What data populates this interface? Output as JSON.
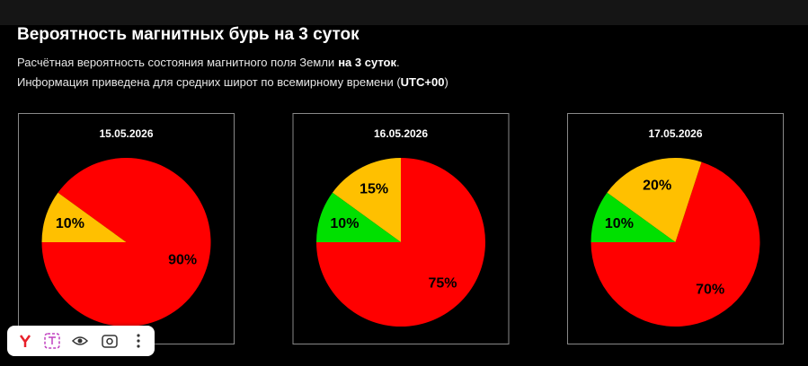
{
  "header": {
    "title": "Вероятность магнитных бурь на 3 суток",
    "lines": [
      [
        "Расчётная вероятность состояния магнитного поля Земли",
        "на 3 суток",
        "."
      ],
      [
        "Информация приведена для средних широт по всемирному времени (",
        "UTC+00",
        ")"
      ]
    ]
  },
  "chart_data": [
    {
      "type": "pie",
      "title": "15.05.2026",
      "values": [
        90,
        10
      ],
      "value_labels": [
        "90%",
        "10%"
      ],
      "colors": [
        "#ff0000",
        "#ffc000"
      ]
    },
    {
      "type": "pie",
      "title": "16.05.2026",
      "values": [
        75,
        15,
        10
      ],
      "value_labels": [
        "75%",
        "15%",
        "10%"
      ],
      "colors": [
        "#ff0000",
        "#ffc000",
        "#00e000"
      ]
    },
    {
      "type": "pie",
      "title": "17.05.2026",
      "values": [
        70,
        20,
        10
      ],
      "value_labels": [
        "70%",
        "20%",
        "10%"
      ],
      "colors": [
        "#ff0000",
        "#ffc000",
        "#00e000"
      ]
    }
  ]
}
